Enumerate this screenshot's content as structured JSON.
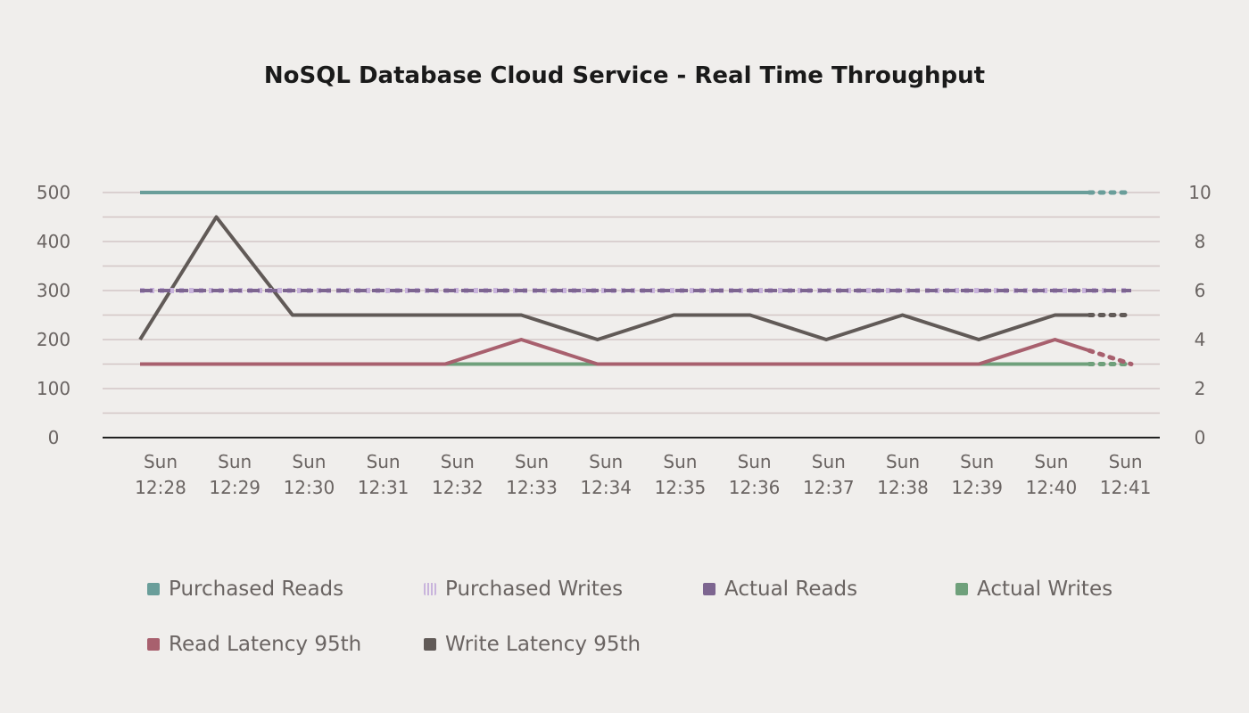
{
  "chart_data": {
    "type": "line",
    "title": "NoSQL Database Cloud Service - Real Time Throughput",
    "categories": [
      "Sun 12:28",
      "Sun 12:29",
      "Sun 12:30",
      "Sun 12:31",
      "Sun 12:32",
      "Sun 12:33",
      "Sun 12:34",
      "Sun 12:35",
      "Sun 12:36",
      "Sun 12:37",
      "Sun 12:38",
      "Sun 12:39",
      "Sun 12:40",
      "Sun 12:41"
    ],
    "y_left": {
      "range": [
        0,
        500
      ],
      "ticks": [
        0,
        100,
        200,
        300,
        400,
        500
      ]
    },
    "y_right": {
      "range": [
        0,
        10
      ],
      "ticks": [
        0,
        2,
        4,
        6,
        8,
        10
      ]
    },
    "grid": true,
    "legend_position": "bottom",
    "series": [
      {
        "name": "Purchased Reads",
        "axis": "left",
        "color": "#6a9e9a",
        "style": "solid",
        "values": [
          500,
          500,
          500,
          500,
          500,
          500,
          500,
          500,
          500,
          500,
          500,
          500,
          500,
          500
        ]
      },
      {
        "name": "Purchased Writes",
        "axis": "left",
        "color": "#c9b4dc",
        "style": "striped",
        "values": [
          300,
          300,
          300,
          300,
          300,
          300,
          300,
          300,
          300,
          300,
          300,
          300,
          300,
          300
        ]
      },
      {
        "name": "Actual Reads",
        "axis": "left",
        "color": "#7d6590",
        "style": "dashed",
        "values": [
          300,
          300,
          300,
          300,
          300,
          300,
          300,
          300,
          300,
          300,
          300,
          300,
          300,
          300
        ]
      },
      {
        "name": "Actual Writes",
        "axis": "left",
        "color": "#6fa07b",
        "style": "solid",
        "values": [
          150,
          150,
          150,
          150,
          150,
          150,
          150,
          150,
          150,
          150,
          150,
          150,
          150,
          150
        ]
      },
      {
        "name": "Read Latency 95th",
        "axis": "right",
        "color": "#a8606e",
        "style": "solid",
        "values": [
          3,
          3,
          3,
          3,
          3,
          4,
          3,
          3,
          3,
          3,
          3,
          3,
          4,
          3
        ]
      },
      {
        "name": "Write Latency 95th",
        "axis": "right",
        "color": "#615a57",
        "style": "solid",
        "values": [
          4,
          9,
          5,
          5,
          5,
          5,
          4,
          5,
          5,
          4,
          5,
          4,
          5,
          5
        ]
      }
    ]
  }
}
